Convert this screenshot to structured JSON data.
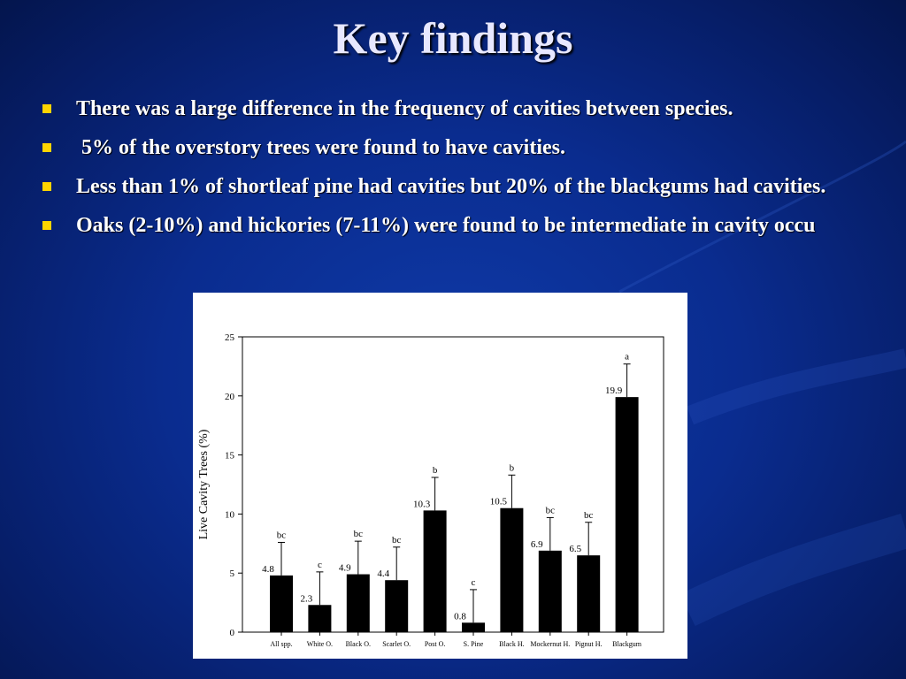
{
  "slide": {
    "title": "Key findings",
    "bullets": [
      "There was a large difference in the frequency of cavities between species.",
      " 5% of the overstory trees were found to have cavities.",
      "Less than 1% of shortleaf pine had cavities but 20% of the blackgums had cavities.",
      "Oaks (2-10%) and hickories (7-11%) were found to be intermediate in cavity occu"
    ],
    "colors": {
      "background": "#0a2c8f",
      "bullet_marker": "#ffd400",
      "text": "#ffffff"
    }
  },
  "chart_data": {
    "type": "bar",
    "title": "",
    "xlabel": "",
    "ylabel": "Live Cavity Trees (%)",
    "ylim": [
      0,
      25
    ],
    "yticks": [
      0,
      5,
      10,
      15,
      20,
      25
    ],
    "grid": false,
    "categories": [
      "All spp.",
      "White O.",
      "Black O.",
      "Scarlet O.",
      "Post O.",
      "S. Pine",
      "Black H.",
      "Mockernut H.",
      "Pignut H.",
      "Blackgum"
    ],
    "values": [
      4.8,
      2.3,
      4.9,
      4.4,
      10.3,
      0.8,
      10.5,
      6.9,
      6.5,
      19.9
    ],
    "value_labels": [
      "4.8",
      "2.3",
      "4.9",
      "4.4",
      "10.3",
      "0.8",
      "10.5",
      "6.9",
      "6.5",
      "19.9"
    ],
    "error_upper": [
      7.6,
      5.1,
      7.7,
      7.2,
      13.1,
      3.6,
      13.3,
      9.7,
      9.3,
      22.7
    ],
    "significance_letters": [
      "bc",
      "c",
      "bc",
      "bc",
      "b",
      "c",
      "b",
      "bc",
      "bc",
      "a"
    ],
    "bar_color": "#000000"
  }
}
